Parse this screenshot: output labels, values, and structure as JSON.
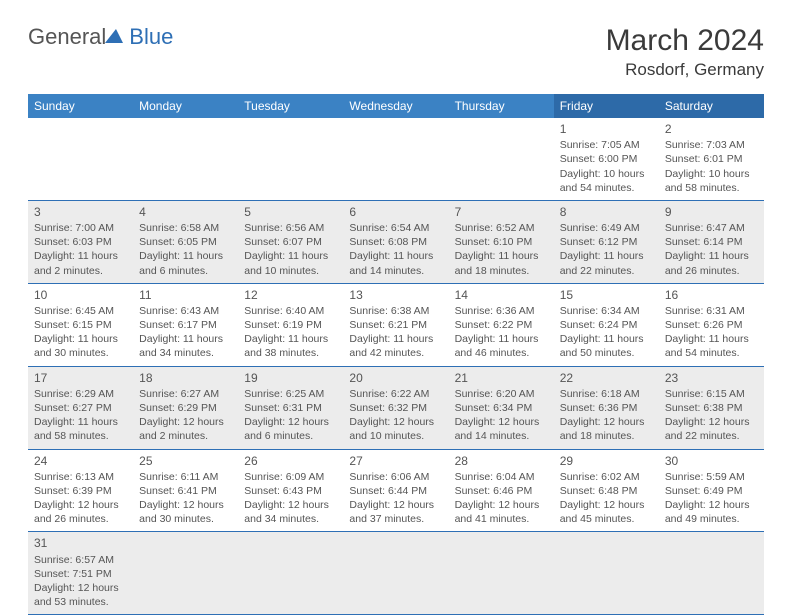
{
  "logo": {
    "part1": "General",
    "part2": "Blue"
  },
  "title": {
    "month_year": "March 2024",
    "location": "Rosdorf, Germany"
  },
  "weekdays": [
    "Sunday",
    "Monday",
    "Tuesday",
    "Wednesday",
    "Thursday",
    "Friday",
    "Saturday"
  ],
  "colors": {
    "header_bg": "#3b82c4",
    "header_bg_weekend": "#2d6aa8",
    "row_border": "#2e6fb5",
    "alt_row_bg": "#ececec",
    "text": "#555555",
    "title_text": "#3a3a3a"
  },
  "typography": {
    "month_fontsize": 30,
    "location_fontsize": 17,
    "weekday_fontsize": 12,
    "daynum_fontsize": 12,
    "body_fontsize": 10.5
  },
  "weeks": [
    [
      null,
      null,
      null,
      null,
      null,
      {
        "n": "1",
        "sr": "Sunrise: 7:05 AM",
        "ss": "Sunset: 6:00 PM",
        "d1": "Daylight: 10 hours",
        "d2": "and 54 minutes."
      },
      {
        "n": "2",
        "sr": "Sunrise: 7:03 AM",
        "ss": "Sunset: 6:01 PM",
        "d1": "Daylight: 10 hours",
        "d2": "and 58 minutes."
      }
    ],
    [
      {
        "n": "3",
        "sr": "Sunrise: 7:00 AM",
        "ss": "Sunset: 6:03 PM",
        "d1": "Daylight: 11 hours",
        "d2": "and 2 minutes."
      },
      {
        "n": "4",
        "sr": "Sunrise: 6:58 AM",
        "ss": "Sunset: 6:05 PM",
        "d1": "Daylight: 11 hours",
        "d2": "and 6 minutes."
      },
      {
        "n": "5",
        "sr": "Sunrise: 6:56 AM",
        "ss": "Sunset: 6:07 PM",
        "d1": "Daylight: 11 hours",
        "d2": "and 10 minutes."
      },
      {
        "n": "6",
        "sr": "Sunrise: 6:54 AM",
        "ss": "Sunset: 6:08 PM",
        "d1": "Daylight: 11 hours",
        "d2": "and 14 minutes."
      },
      {
        "n": "7",
        "sr": "Sunrise: 6:52 AM",
        "ss": "Sunset: 6:10 PM",
        "d1": "Daylight: 11 hours",
        "d2": "and 18 minutes."
      },
      {
        "n": "8",
        "sr": "Sunrise: 6:49 AM",
        "ss": "Sunset: 6:12 PM",
        "d1": "Daylight: 11 hours",
        "d2": "and 22 minutes."
      },
      {
        "n": "9",
        "sr": "Sunrise: 6:47 AM",
        "ss": "Sunset: 6:14 PM",
        "d1": "Daylight: 11 hours",
        "d2": "and 26 minutes."
      }
    ],
    [
      {
        "n": "10",
        "sr": "Sunrise: 6:45 AM",
        "ss": "Sunset: 6:15 PM",
        "d1": "Daylight: 11 hours",
        "d2": "and 30 minutes."
      },
      {
        "n": "11",
        "sr": "Sunrise: 6:43 AM",
        "ss": "Sunset: 6:17 PM",
        "d1": "Daylight: 11 hours",
        "d2": "and 34 minutes."
      },
      {
        "n": "12",
        "sr": "Sunrise: 6:40 AM",
        "ss": "Sunset: 6:19 PM",
        "d1": "Daylight: 11 hours",
        "d2": "and 38 minutes."
      },
      {
        "n": "13",
        "sr": "Sunrise: 6:38 AM",
        "ss": "Sunset: 6:21 PM",
        "d1": "Daylight: 11 hours",
        "d2": "and 42 minutes."
      },
      {
        "n": "14",
        "sr": "Sunrise: 6:36 AM",
        "ss": "Sunset: 6:22 PM",
        "d1": "Daylight: 11 hours",
        "d2": "and 46 minutes."
      },
      {
        "n": "15",
        "sr": "Sunrise: 6:34 AM",
        "ss": "Sunset: 6:24 PM",
        "d1": "Daylight: 11 hours",
        "d2": "and 50 minutes."
      },
      {
        "n": "16",
        "sr": "Sunrise: 6:31 AM",
        "ss": "Sunset: 6:26 PM",
        "d1": "Daylight: 11 hours",
        "d2": "and 54 minutes."
      }
    ],
    [
      {
        "n": "17",
        "sr": "Sunrise: 6:29 AM",
        "ss": "Sunset: 6:27 PM",
        "d1": "Daylight: 11 hours",
        "d2": "and 58 minutes."
      },
      {
        "n": "18",
        "sr": "Sunrise: 6:27 AM",
        "ss": "Sunset: 6:29 PM",
        "d1": "Daylight: 12 hours",
        "d2": "and 2 minutes."
      },
      {
        "n": "19",
        "sr": "Sunrise: 6:25 AM",
        "ss": "Sunset: 6:31 PM",
        "d1": "Daylight: 12 hours",
        "d2": "and 6 minutes."
      },
      {
        "n": "20",
        "sr": "Sunrise: 6:22 AM",
        "ss": "Sunset: 6:32 PM",
        "d1": "Daylight: 12 hours",
        "d2": "and 10 minutes."
      },
      {
        "n": "21",
        "sr": "Sunrise: 6:20 AM",
        "ss": "Sunset: 6:34 PM",
        "d1": "Daylight: 12 hours",
        "d2": "and 14 minutes."
      },
      {
        "n": "22",
        "sr": "Sunrise: 6:18 AM",
        "ss": "Sunset: 6:36 PM",
        "d1": "Daylight: 12 hours",
        "d2": "and 18 minutes."
      },
      {
        "n": "23",
        "sr": "Sunrise: 6:15 AM",
        "ss": "Sunset: 6:38 PM",
        "d1": "Daylight: 12 hours",
        "d2": "and 22 minutes."
      }
    ],
    [
      {
        "n": "24",
        "sr": "Sunrise: 6:13 AM",
        "ss": "Sunset: 6:39 PM",
        "d1": "Daylight: 12 hours",
        "d2": "and 26 minutes."
      },
      {
        "n": "25",
        "sr": "Sunrise: 6:11 AM",
        "ss": "Sunset: 6:41 PM",
        "d1": "Daylight: 12 hours",
        "d2": "and 30 minutes."
      },
      {
        "n": "26",
        "sr": "Sunrise: 6:09 AM",
        "ss": "Sunset: 6:43 PM",
        "d1": "Daylight: 12 hours",
        "d2": "and 34 minutes."
      },
      {
        "n": "27",
        "sr": "Sunrise: 6:06 AM",
        "ss": "Sunset: 6:44 PM",
        "d1": "Daylight: 12 hours",
        "d2": "and 37 minutes."
      },
      {
        "n": "28",
        "sr": "Sunrise: 6:04 AM",
        "ss": "Sunset: 6:46 PM",
        "d1": "Daylight: 12 hours",
        "d2": "and 41 minutes."
      },
      {
        "n": "29",
        "sr": "Sunrise: 6:02 AM",
        "ss": "Sunset: 6:48 PM",
        "d1": "Daylight: 12 hours",
        "d2": "and 45 minutes."
      },
      {
        "n": "30",
        "sr": "Sunrise: 5:59 AM",
        "ss": "Sunset: 6:49 PM",
        "d1": "Daylight: 12 hours",
        "d2": "and 49 minutes."
      }
    ],
    [
      {
        "n": "31",
        "sr": "Sunrise: 6:57 AM",
        "ss": "Sunset: 7:51 PM",
        "d1": "Daylight: 12 hours",
        "d2": "and 53 minutes."
      },
      null,
      null,
      null,
      null,
      null,
      null
    ]
  ]
}
